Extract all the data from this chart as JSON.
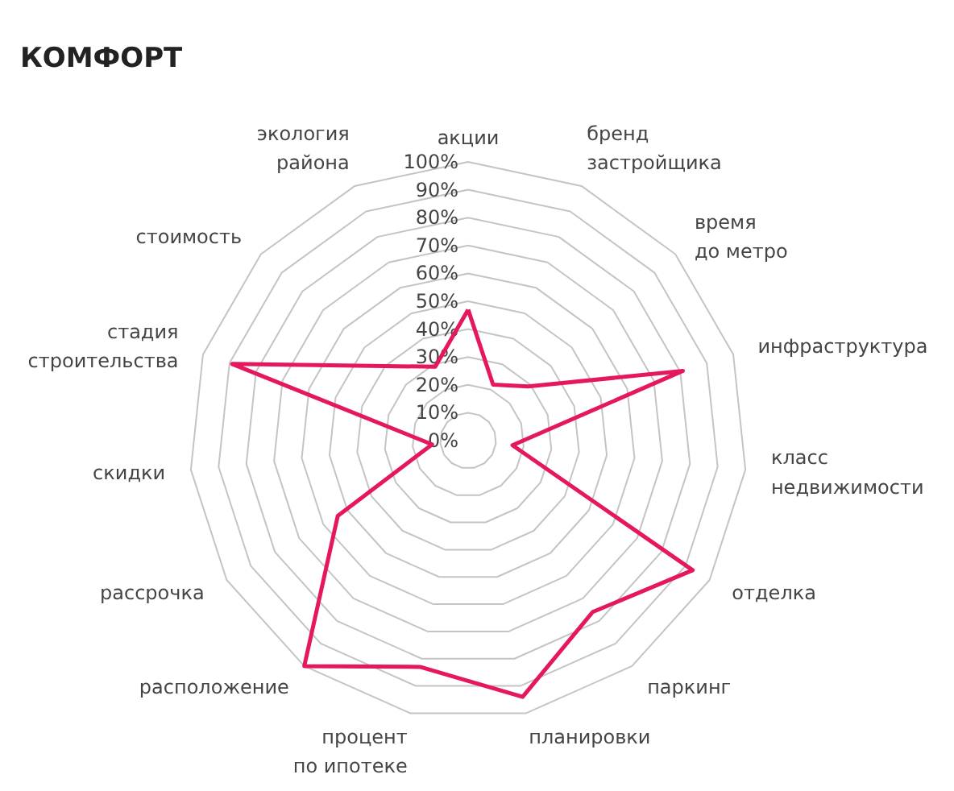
{
  "chart_data": {
    "type": "radar",
    "title": "КОМФОРТ",
    "categories": [
      "акции",
      "бренд\nзастройщика",
      "время\nдо метро",
      "инфраструктура",
      "класс\nнедвижимости",
      "отделка",
      "паркинг",
      "планировки",
      "процент\nпо ипотеке",
      "расположение",
      "рассрочка",
      "скидки",
      "стадия\nстроительства",
      "стоимость",
      "экология\nрайона"
    ],
    "series": [
      {
        "color": "#e5185d",
        "values": [
          47,
          22,
          29,
          81,
          16,
          93,
          76,
          94,
          83,
          100,
          54,
          13,
          89,
          40,
          29
        ]
      }
    ],
    "ylim": [
      0,
      100
    ],
    "yticks": [
      {
        "value": 0,
        "label": "0%"
      },
      {
        "value": 10,
        "label": "10%"
      },
      {
        "value": 20,
        "label": "20%"
      },
      {
        "value": 30,
        "label": "30%"
      },
      {
        "value": 40,
        "label": "40%"
      },
      {
        "value": 50,
        "label": "50%"
      },
      {
        "value": 60,
        "label": "60%"
      },
      {
        "value": 70,
        "label": "70%"
      },
      {
        "value": 80,
        "label": "80%"
      },
      {
        "value": 90,
        "label": "90%"
      },
      {
        "value": 100,
        "label": "100%"
      }
    ],
    "grid": true
  }
}
